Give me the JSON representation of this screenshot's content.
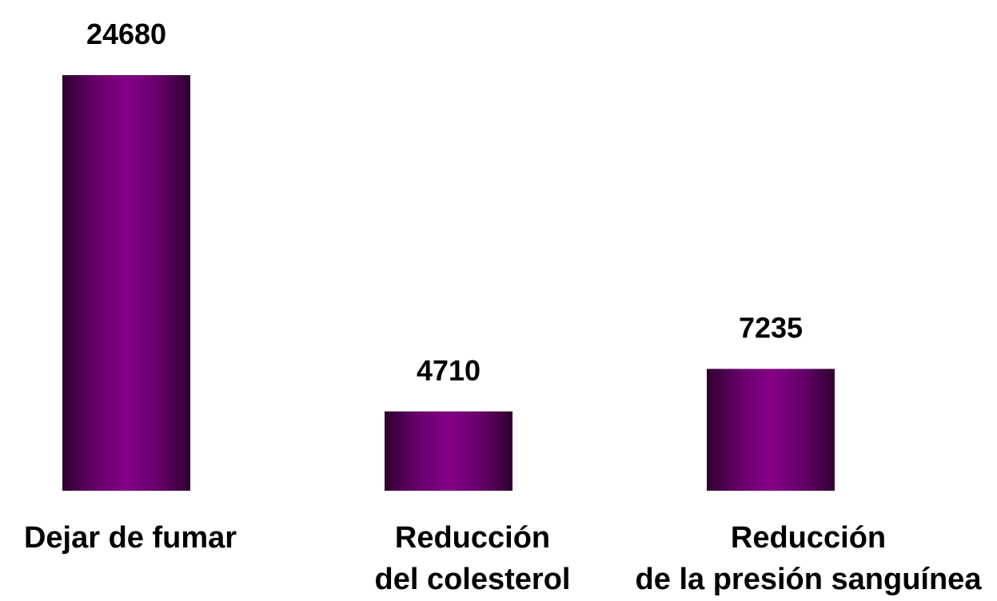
{
  "chart_data": {
    "type": "bar",
    "categories": [
      [
        "Dejar de fumar"
      ],
      [
        "Reducción",
        "del colesterol"
      ],
      [
        "Reducción",
        "de la presión sanguínea"
      ]
    ],
    "values": [
      24680,
      4710,
      7235
    ],
    "data_labels": [
      "24680",
      "4710",
      "7235"
    ],
    "title": "",
    "xlabel": "",
    "ylabel": "",
    "ylim": [
      0,
      24680
    ],
    "grid": false,
    "legend": "none",
    "bar_color": "#7f007f",
    "bar_edge_color": "#2e002e"
  }
}
